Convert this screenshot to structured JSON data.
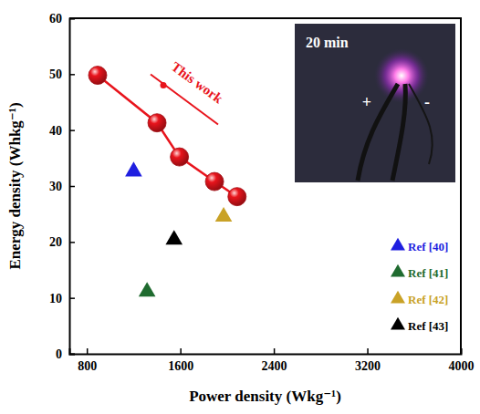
{
  "chart_data": {
    "type": "scatter",
    "x_label": "Power density (Wkg⁻¹)",
    "y_label": "Energy density (Whkg⁻¹)",
    "xlim": [
      650,
      4000
    ],
    "xticks": [
      800,
      1600,
      2400,
      3200,
      4000
    ],
    "ylim": [
      0,
      60
    ],
    "yticks": [
      0,
      10,
      20,
      30,
      40,
      50,
      60
    ],
    "grid": false,
    "legend": "lower right",
    "annotations": [
      "20 min",
      "+",
      "-"
    ],
    "series": [
      {
        "name": "This work",
        "color": "#e8141c",
        "marker": "circle",
        "line_style": "solid",
        "x": [
          892,
          1400,
          1592,
          1892,
          2085
        ],
        "values": [
          49.8,
          41.3,
          35.2,
          30.8,
          28.1
        ]
      },
      {
        "name": "Ref [40]",
        "color": "#1f1fe0",
        "marker": "triangle",
        "line_style": "none",
        "x": [
          1200
        ],
        "values": [
          32.6
        ]
      },
      {
        "name": "Ref [41]",
        "color": "#1f6b2f",
        "marker": "triangle",
        "line_style": "none",
        "x": [
          1315
        ],
        "values": [
          11.1
        ]
      },
      {
        "name": "Ref [42]",
        "color": "#c9a227",
        "marker": "triangle",
        "line_style": "none",
        "x": [
          1970
        ],
        "values": [
          24.5
        ]
      },
      {
        "name": "Ref [43]",
        "color": "#000000",
        "marker": "triangle",
        "line_style": "none",
        "x": [
          1546
        ],
        "values": [
          20.4
        ]
      }
    ]
  }
}
